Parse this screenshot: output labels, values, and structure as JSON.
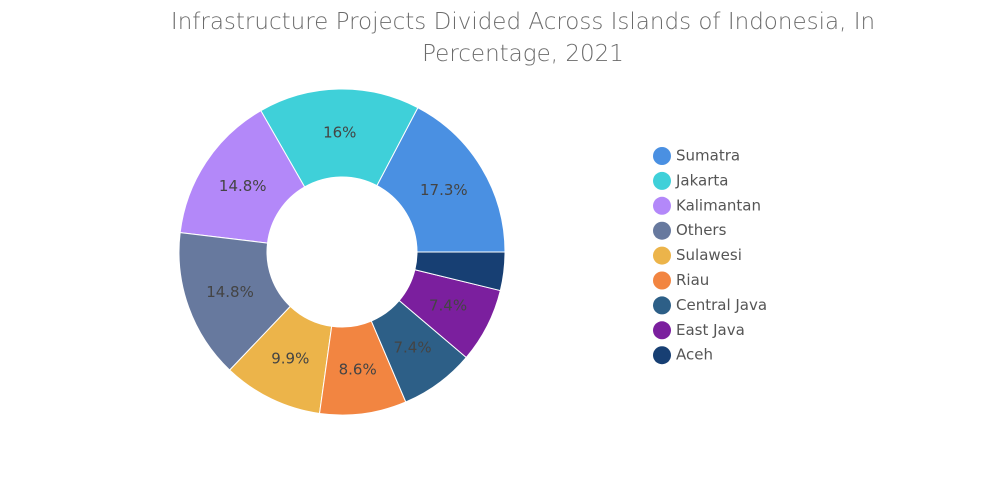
{
  "chart_data": {
    "type": "donut",
    "title": "Infrastructure Projects Divided Across Islands of Indonesia, In Percentage, 2021",
    "categories": [
      "Sumatra",
      "Jakarta",
      "Kalimantan",
      "Others",
      "Sulawesi",
      "Riau",
      "Central Java",
      "East Java",
      "Aceh"
    ],
    "values": [
      17.3,
      16,
      14.8,
      14.8,
      9.9,
      8.6,
      7.4,
      7.4,
      3.8
    ],
    "value_labels": [
      "17.3%",
      "16%",
      "14.8%",
      "14.8%",
      "9.9%",
      "8.6%",
      "7.4%",
      "7.4%",
      null
    ],
    "colors": [
      "#4a90e2",
      "#3fd0d9",
      "#b388f9",
      "#67799e",
      "#ecb44a",
      "#f28541",
      "#2d5f87",
      "#7b1f9e",
      "#173f73"
    ],
    "legend": "right"
  }
}
